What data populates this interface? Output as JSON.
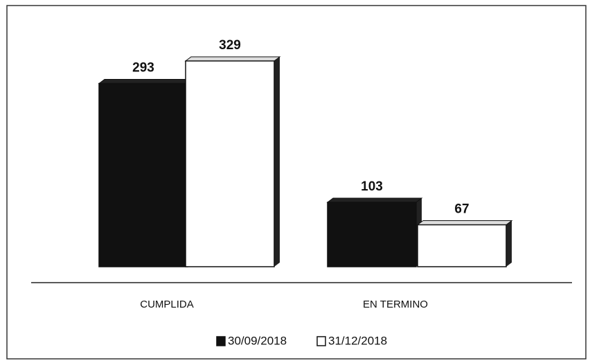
{
  "chart_data": {
    "type": "bar",
    "categories": [
      "CUMPLIDA",
      "EN TERMINO"
    ],
    "series": [
      {
        "name": "30/09/2018",
        "color": "#111111",
        "values": [
          293,
          103
        ]
      },
      {
        "name": "31/12/2018",
        "color": "#ffffff",
        "values": [
          329,
          67
        ]
      }
    ],
    "legend": "bottom"
  }
}
